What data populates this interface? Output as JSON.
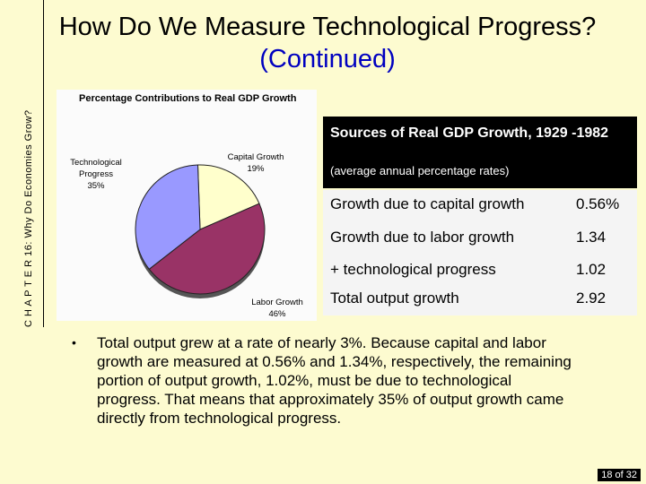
{
  "side_label": "C H A P T E R 16: Why Do Economies Grow?",
  "title_main": "How Do We Measure Technological Progress? ",
  "title_sub": "(Continued)",
  "chart_data": {
    "type": "pie",
    "title": "Percentage Contributions to Real GDP Growth",
    "slices": [
      {
        "label": "Capital Growth",
        "value": 19,
        "value_label": "19%",
        "color": "#ffffcc"
      },
      {
        "label": "Labor Growth",
        "value": 46,
        "value_label": "46%",
        "color": "#993366"
      },
      {
        "label": "Technological Progress",
        "value": 35,
        "value_label": "35%",
        "color": "#9999ff"
      }
    ]
  },
  "table": {
    "title": "Sources of Real GDP Growth, 1929 -1982",
    "subtitle": "(average annual percentage rates)",
    "rows": [
      {
        "label": "Growth due to capital growth",
        "value": "0.56%"
      },
      {
        "label": "Growth due to labor growth",
        "value": "1.34"
      },
      {
        "label": "+ technological progress",
        "value": "1.02"
      },
      {
        "label": "Total output growth",
        "value": "2.92"
      }
    ]
  },
  "bullet": "Total output grew at a rate of nearly 3%. Because capital and labor growth are measured at 0.56% and 1.34%, respectively, the remaining portion of output growth, 1.02%, must be due to technological progress. That means that approximately 35% of output growth came directly from technological progress.",
  "page_number": "18 of 32"
}
